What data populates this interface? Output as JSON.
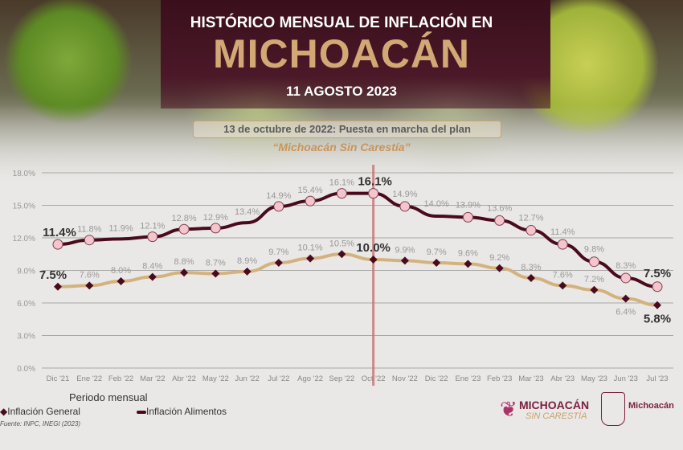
{
  "header": {
    "line1": "HISTÓRICO MENSUAL DE INFLACIÓN EN",
    "line2": "MICHOACÁN",
    "date": "11 AGOSTO 2023"
  },
  "annotation": {
    "line1": "13 de octubre de 2022: Puesta en marcha del plan",
    "line2": "“Michoacán Sin Carestía”",
    "month": "Oct '22"
  },
  "footer": {
    "source": "Fuente: INPC, INEGI (2023)",
    "logo1_top": "MICHOACÁN",
    "logo1_bottom": "SIN CARESTÍA",
    "logo2": "Michoacán"
  },
  "colors": {
    "general": "#d4b27e",
    "alimentos": "#4a0a1e",
    "marker_alimentos": "#f5c4cc",
    "annotation_line": "#c97070"
  },
  "chart_data": {
    "type": "line",
    "title": "HISTÓRICO MENSUAL DE INFLACIÓN EN MICHOACÁN",
    "xlabel": "Periodo mensual",
    "ylabel": "",
    "ylim": [
      0,
      18
    ],
    "yticks": [
      "0.0%",
      "3.0%",
      "6.0%",
      "9.0%",
      "12.0%",
      "15.0%",
      "18.0%"
    ],
    "grid": true,
    "legend": "bottom-left",
    "categories": [
      "Dic '21",
      "Ene '22",
      "Feb '22",
      "Mar '22",
      "Abr '22",
      "May '22",
      "Jun '22",
      "Jul '22",
      "Ago '22",
      "Sep '22",
      "Oct '22",
      "Nov '22",
      "Dic '22",
      "Ene '23",
      "Feb '23",
      "Mar '23",
      "Abr '23",
      "May '23",
      "Jun '23",
      "Jul '23"
    ],
    "series": [
      {
        "name": "Inflación General",
        "values": [
          7.5,
          7.6,
          8.0,
          8.4,
          8.8,
          8.7,
          8.9,
          9.7,
          10.1,
          10.5,
          10.0,
          9.9,
          9.7,
          9.6,
          9.2,
          8.3,
          7.6,
          7.2,
          6.4,
          5.8
        ]
      },
      {
        "name": "Inflación Alimentos",
        "values": [
          11.4,
          11.8,
          11.9,
          12.1,
          12.8,
          12.9,
          13.4,
          14.9,
          15.4,
          16.1,
          16.1,
          14.9,
          14.0,
          13.9,
          13.6,
          12.7,
          11.4,
          9.8,
          8.3,
          7.5
        ]
      }
    ]
  }
}
